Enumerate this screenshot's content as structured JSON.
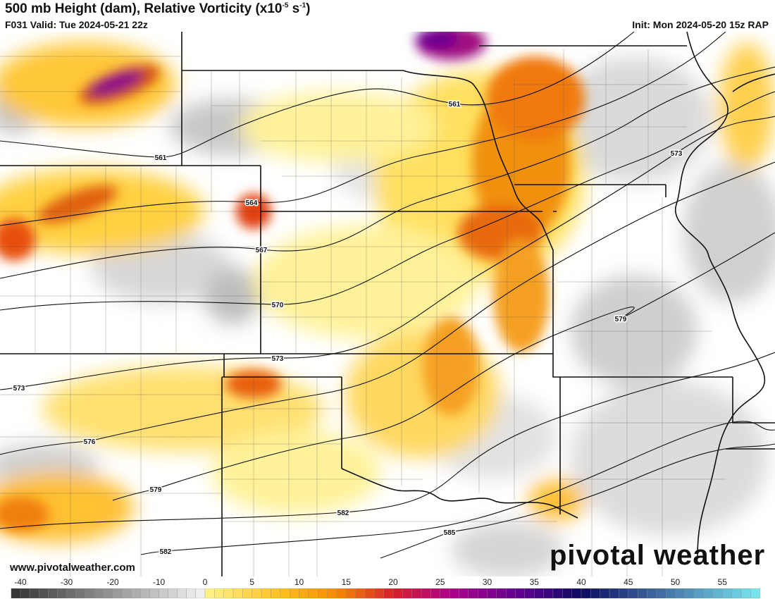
{
  "header": {
    "title_main": "500 mb Height (dam), Relative Vorticity (x10",
    "title_exp1": "-5",
    "title_mid": " s",
    "title_exp2": "-1",
    "title_end": ")",
    "valid": "F031 Valid: Tue 2024-05-21 22z",
    "init": "Init: Mon 2024-05-20 15z RAP"
  },
  "footer": {
    "url": "www.pivotalweather.com",
    "logo": "pivotal weather"
  },
  "contour_labels": [
    {
      "text": "561"
    },
    {
      "text": "561"
    },
    {
      "text": "564"
    },
    {
      "text": "567"
    },
    {
      "text": "570"
    },
    {
      "text": "573"
    },
    {
      "text": "573"
    },
    {
      "text": "573"
    },
    {
      "text": "576"
    },
    {
      "text": "579"
    },
    {
      "text": "579"
    },
    {
      "text": "582"
    },
    {
      "text": "582"
    },
    {
      "text": "585"
    }
  ],
  "colorbar": {
    "ticks": [
      "-40",
      "-30",
      "-20",
      "-10",
      "0",
      "5",
      "10",
      "15",
      "20",
      "25",
      "30",
      "35",
      "40",
      "45",
      "50",
      "55"
    ],
    "range": [
      -40,
      60
    ],
    "colors": {
      "neg_dark": "#3a3a3a",
      "neg_light": "#f4f4f4",
      "yellow": "#fff48c",
      "gold": "#ffc020",
      "orange": "#f58a00",
      "red": "#d8202a",
      "magenta": "#b0008a",
      "purple": "#5a0090",
      "navy": "#0a0a60",
      "steel": "#4a80b0",
      "cyan": "#80f4f8"
    }
  }
}
